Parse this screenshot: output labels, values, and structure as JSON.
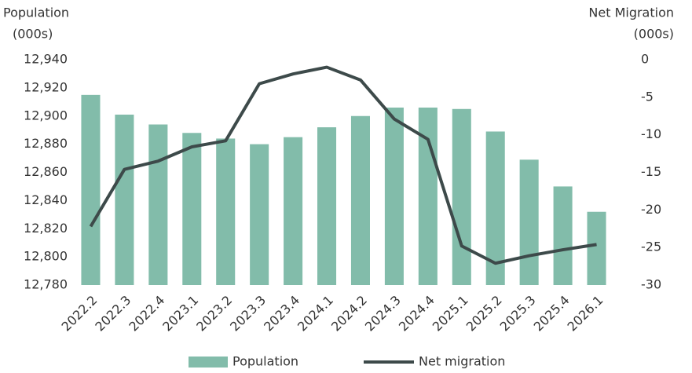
{
  "chart_data": {
    "type": "bar-line",
    "y_label": [
      "Population",
      "(000s)"
    ],
    "y2_label": [
      "Net Migration",
      "(000s)"
    ],
    "categories": [
      "2022.2",
      "2022.3",
      "2022.4",
      "2023.1",
      "2023.2",
      "2023.3",
      "2023.4",
      "2024.1",
      "2024.2",
      "2024.3",
      "2024.4",
      "2025.1",
      "2025.2",
      "2025.3",
      "2025.4",
      "2026.1"
    ],
    "series": [
      {
        "name": "Population",
        "type": "bar",
        "color": "#82bcaa",
        "axis": "y",
        "values": [
          12915,
          12901,
          12894,
          12888,
          12884,
          12880,
          12885,
          12892,
          12900,
          12906,
          12906,
          12905,
          12889,
          12869,
          12850,
          12832
        ]
      },
      {
        "name": "Net migration",
        "type": "line",
        "color": "#3d4a4a",
        "axis": "y2",
        "values": [
          -22.2,
          -14.6,
          -13.5,
          -11.6,
          -10.8,
          -3.2,
          -1.9,
          -1.0,
          -2.7,
          -7.9,
          -10.6,
          -24.8,
          -27.1,
          -26.1,
          -25.3,
          -24.6
        ]
      }
    ],
    "ylim": [
      12780,
      12940
    ],
    "yticks": [
      {
        "value": 12780,
        "label": "12,780"
      },
      {
        "value": 12800,
        "label": "12,800"
      },
      {
        "value": 12820,
        "label": "12,820"
      },
      {
        "value": 12840,
        "label": "12,840"
      },
      {
        "value": 12860,
        "label": "12,860"
      },
      {
        "value": 12880,
        "label": "12,880"
      },
      {
        "value": 12900,
        "label": "12,900"
      },
      {
        "value": 12920,
        "label": "12,920"
      },
      {
        "value": 12940,
        "label": "12,940"
      }
    ],
    "y2lim": [
      -30,
      0
    ],
    "y2ticks": [
      -30,
      -25,
      -20,
      -15,
      -10,
      -5,
      0
    ],
    "grid": false,
    "legend": "bottom"
  }
}
